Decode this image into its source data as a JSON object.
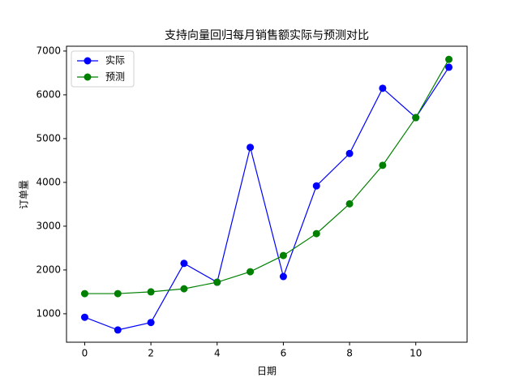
{
  "chart_data": {
    "type": "line",
    "title": "支持向量回归每月销售额实际与预测对比",
    "xlabel": "日期",
    "ylabel": "订单量",
    "x": [
      0,
      1,
      2,
      3,
      4,
      5,
      6,
      7,
      8,
      9,
      10,
      11
    ],
    "series": [
      {
        "name": "实际",
        "color": "#0000ff",
        "values": [
          920,
          630,
          800,
          2150,
          1720,
          4800,
          1850,
          3920,
          4660,
          6150,
          5480,
          6630
        ]
      },
      {
        "name": "预测",
        "color": "#008000",
        "values": [
          1460,
          1460,
          1500,
          1570,
          1720,
          1960,
          2330,
          2830,
          3510,
          4390,
          5480,
          6810
        ]
      }
    ],
    "xlim": [
      -0.55,
      11.55
    ],
    "ylim": [
      350,
      7110
    ],
    "xticks": [
      0,
      2,
      4,
      6,
      8,
      10
    ],
    "yticks": [
      1000,
      2000,
      3000,
      4000,
      5000,
      6000,
      7000
    ],
    "legend": "upper left",
    "grid": false
  }
}
